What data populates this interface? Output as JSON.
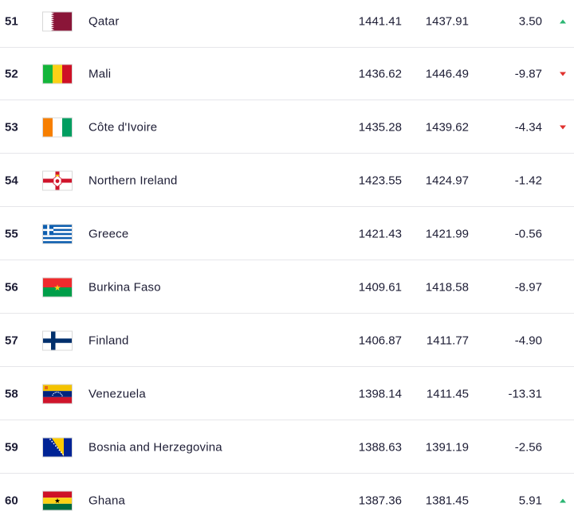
{
  "rows": [
    {
      "rank": "51",
      "team": "Qatar",
      "points": "1441.41",
      "previous_points": "1437.91",
      "change": "3.50",
      "trend": "up",
      "flag": "qatar-flag-icon"
    },
    {
      "rank": "52",
      "team": "Mali",
      "points": "1436.62",
      "previous_points": "1446.49",
      "change": "-9.87",
      "trend": "down",
      "flag": "mali-flag-icon"
    },
    {
      "rank": "53",
      "team": "Côte d'Ivoire",
      "points": "1435.28",
      "previous_points": "1439.62",
      "change": "-4.34",
      "trend": "down",
      "flag": "cote-divoire-flag-icon"
    },
    {
      "rank": "54",
      "team": "Northern Ireland",
      "points": "1423.55",
      "previous_points": "1424.97",
      "change": "-1.42",
      "trend": "none",
      "flag": "northern-ireland-flag-icon"
    },
    {
      "rank": "55",
      "team": "Greece",
      "points": "1421.43",
      "previous_points": "1421.99",
      "change": "-0.56",
      "trend": "none",
      "flag": "greece-flag-icon"
    },
    {
      "rank": "56",
      "team": "Burkina Faso",
      "points": "1409.61",
      "previous_points": "1418.58",
      "change": "-8.97",
      "trend": "none",
      "flag": "burkina-faso-flag-icon"
    },
    {
      "rank": "57",
      "team": "Finland",
      "points": "1406.87",
      "previous_points": "1411.77",
      "change": "-4.90",
      "trend": "none",
      "flag": "finland-flag-icon"
    },
    {
      "rank": "58",
      "team": "Venezuela",
      "points": "1398.14",
      "previous_points": "1411.45",
      "change": "-13.31",
      "trend": "none",
      "flag": "venezuela-flag-icon"
    },
    {
      "rank": "59",
      "team": "Bosnia and Herzegovina",
      "points": "1388.63",
      "previous_points": "1391.19",
      "change": "-2.56",
      "trend": "none",
      "flag": "bosnia-herzegovina-flag-icon"
    },
    {
      "rank": "60",
      "team": "Ghana",
      "points": "1387.36",
      "previous_points": "1381.45",
      "change": "5.91",
      "trend": "up",
      "flag": "ghana-flag-icon"
    }
  ],
  "colors": {
    "text": "#1d1d35",
    "divider": "#e6e6ea",
    "trend_up": "#2bb673",
    "trend_down": "#e0312e"
  }
}
